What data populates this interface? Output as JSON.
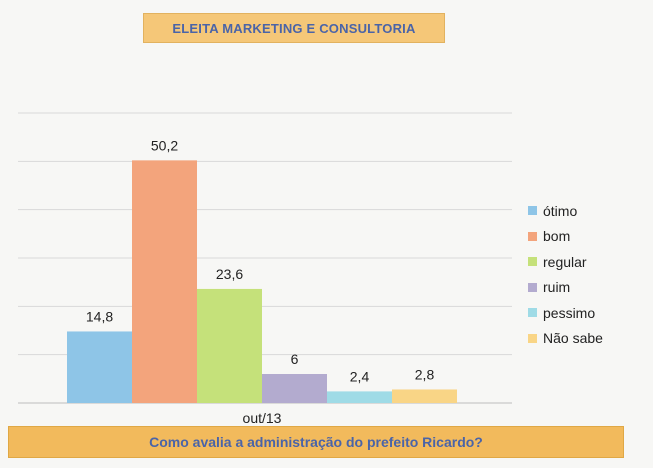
{
  "header": {
    "title": "ELEITA MARKETING E CONSULTORIA"
  },
  "footer": {
    "question": "Como avalia a administração do prefeito Ricardo?"
  },
  "colors": {
    "otimo": "#8ec5e7",
    "bom": "#f3a47c",
    "regular": "#c5e17a",
    "ruim": "#b3abcf",
    "pessimo": "#9fdbe6",
    "nao_sabe": "#f9d586"
  },
  "chart_data": {
    "type": "bar",
    "categories": [
      "out/13"
    ],
    "series": [
      {
        "name": "ótimo",
        "values": [
          14.8
        ],
        "label": "14,8",
        "color": "#8ec5e7"
      },
      {
        "name": "bom",
        "values": [
          50.2
        ],
        "label": "50,2",
        "color": "#f3a47c"
      },
      {
        "name": "regular",
        "values": [
          23.6
        ],
        "label": "23,6",
        "color": "#c5e17a"
      },
      {
        "name": "ruim",
        "values": [
          6
        ],
        "label": "6",
        "color": "#b3abcf"
      },
      {
        "name": "pessimo",
        "values": [
          2.4
        ],
        "label": "2,4",
        "color": "#9fdbe6"
      },
      {
        "name": "Não sabe",
        "values": [
          2.8
        ],
        "label": "2,8",
        "color": "#f9d586"
      }
    ],
    "ylim": [
      0,
      60
    ],
    "grid": true,
    "legend_position": "right"
  }
}
